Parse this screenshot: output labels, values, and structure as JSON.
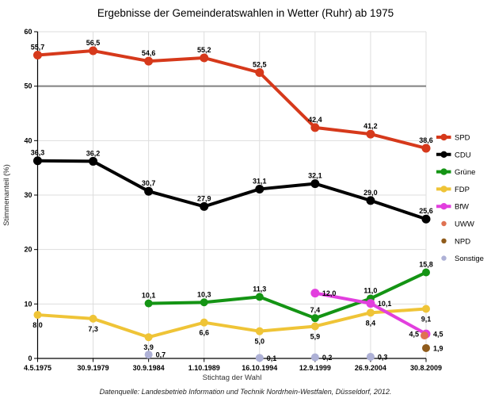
{
  "chart_data": {
    "type": "line",
    "title": "Ergebnisse der Gemeinderatswahlen in Wetter (Ruhr) ab 1975",
    "xlabel": "Stichtag der Wahl",
    "ylabel": "Stimmenanteil (%)",
    "source": "Datenquelle: Landesbetrieb Information und Technik Nordrhein-Westfalen, Düsseldorf, 2012.",
    "ylim": [
      0,
      60
    ],
    "y_tick_step": 10,
    "y_ticks": [
      0,
      10,
      20,
      30,
      40,
      50,
      60
    ],
    "decimal_separator": ",",
    "legend_position": "right",
    "grid": {
      "vertical": true,
      "h_light_color": "#DDDDDD",
      "v_light_color": "#DDDDDD",
      "h_dark_at": 50,
      "h_dark_color": "#808080",
      "axis_color": "#000000"
    },
    "categories": [
      "4.5.1975",
      "30.9.1979",
      "30.9.1984",
      "1.10.1989",
      "16.10.1994",
      "12.9.1999",
      "26.9.2004",
      "30.8.2009"
    ],
    "series": [
      {
        "name": "SPD",
        "color": "#D6391B",
        "marker": "line",
        "line_width": 4,
        "marker_r": 5.5,
        "values": [
          55.7,
          56.5,
          54.6,
          55.2,
          52.5,
          42.4,
          41.2,
          38.6
        ],
        "label_pos": "above"
      },
      {
        "name": "CDU",
        "color": "#000000",
        "marker": "line",
        "line_width": 4,
        "marker_r": 5.5,
        "values": [
          36.3,
          36.2,
          30.7,
          27.9,
          31.1,
          32.1,
          29.0,
          25.6
        ],
        "label_pos": "above"
      },
      {
        "name": "Grüne",
        "color": "#149414",
        "marker": "line",
        "line_width": 4,
        "marker_r": 5,
        "values": [
          null,
          null,
          10.1,
          10.3,
          11.3,
          7.4,
          11.0,
          15.8
        ],
        "label_pos": "above"
      },
      {
        "name": "FDP",
        "color": "#EFC437",
        "marker": "line",
        "line_width": 4,
        "marker_r": 5,
        "values": [
          8.0,
          7.3,
          3.9,
          6.6,
          5.0,
          5.9,
          8.4,
          9.1
        ],
        "label_pos": "below"
      },
      {
        "name": "BfW",
        "color": "#E23FDE",
        "marker": "line",
        "line_width": 4,
        "marker_r": 5.5,
        "values": [
          null,
          null,
          null,
          null,
          null,
          12.0,
          10.1,
          4.5
        ],
        "label_pos": "right",
        "label_pos_overrides": {
          "7": "left"
        }
      },
      {
        "name": "UWW",
        "color": "#DF7252",
        "marker": "dot",
        "marker_r": 5,
        "values": [
          null,
          null,
          null,
          null,
          null,
          null,
          null,
          4.5
        ],
        "label_pos": "right",
        "marker_offset": [
          -2,
          2
        ]
      },
      {
        "name": "NPD",
        "color": "#8F5B1B",
        "marker": "dot",
        "marker_r": 5,
        "values": [
          null,
          null,
          null,
          null,
          null,
          null,
          null,
          1.9
        ],
        "label_pos": "right"
      },
      {
        "name": "Sonstige",
        "color": "#AEB1D6",
        "marker": "dot",
        "marker_r": 5,
        "values": [
          null,
          null,
          0.7,
          null,
          0.1,
          0.2,
          0.3,
          null
        ],
        "label_pos": "right"
      }
    ]
  }
}
